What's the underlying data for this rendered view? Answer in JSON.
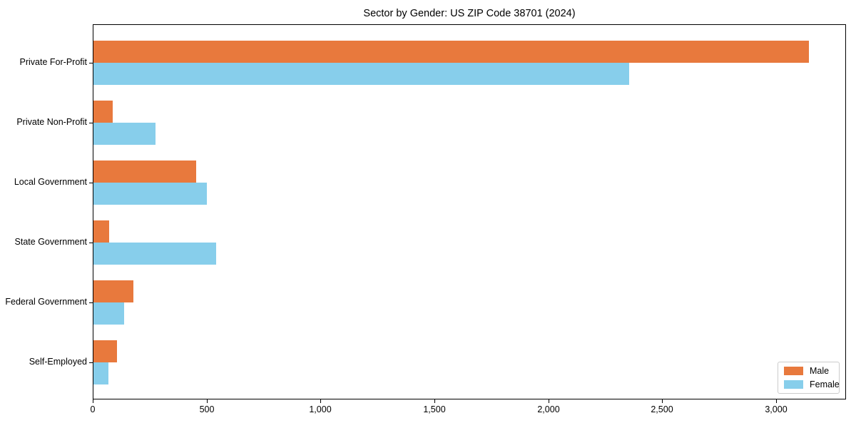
{
  "title": "Sector by Gender: US ZIP Code 38701 (2024)",
  "colors": {
    "male": "#e8793d",
    "female": "#87ceeb",
    "spine": "#000000",
    "legend_border": "#cccccc",
    "background": "#ffffff"
  },
  "legend": {
    "position": "lower right",
    "male_label": "Male",
    "female_label": "Female"
  },
  "chart_data": {
    "type": "bar",
    "orientation": "horizontal",
    "title": "Sector by Gender: US ZIP Code 38701 (2024)",
    "xlabel": "",
    "ylabel": "",
    "grid": false,
    "xlim": [
      0,
      3300
    ],
    "xticks": [
      0,
      500,
      1000,
      1500,
      2000,
      2500,
      3000
    ],
    "xtick_labels": [
      "0",
      "500",
      "1,000",
      "1,500",
      "2,000",
      "2,500",
      "3,000"
    ],
    "categories": [
      "Private For-Profit",
      "Private Non-Profit",
      "Local Government",
      "State Government",
      "Federal Government",
      "Self-Employed"
    ],
    "series": [
      {
        "name": "Male",
        "color": "#e8793d",
        "values": [
          3140,
          86,
          451,
          70,
          176,
          102
        ]
      },
      {
        "name": "Female",
        "color": "#87ceeb",
        "values": [
          2352,
          273,
          498,
          539,
          136,
          67
        ]
      }
    ]
  }
}
